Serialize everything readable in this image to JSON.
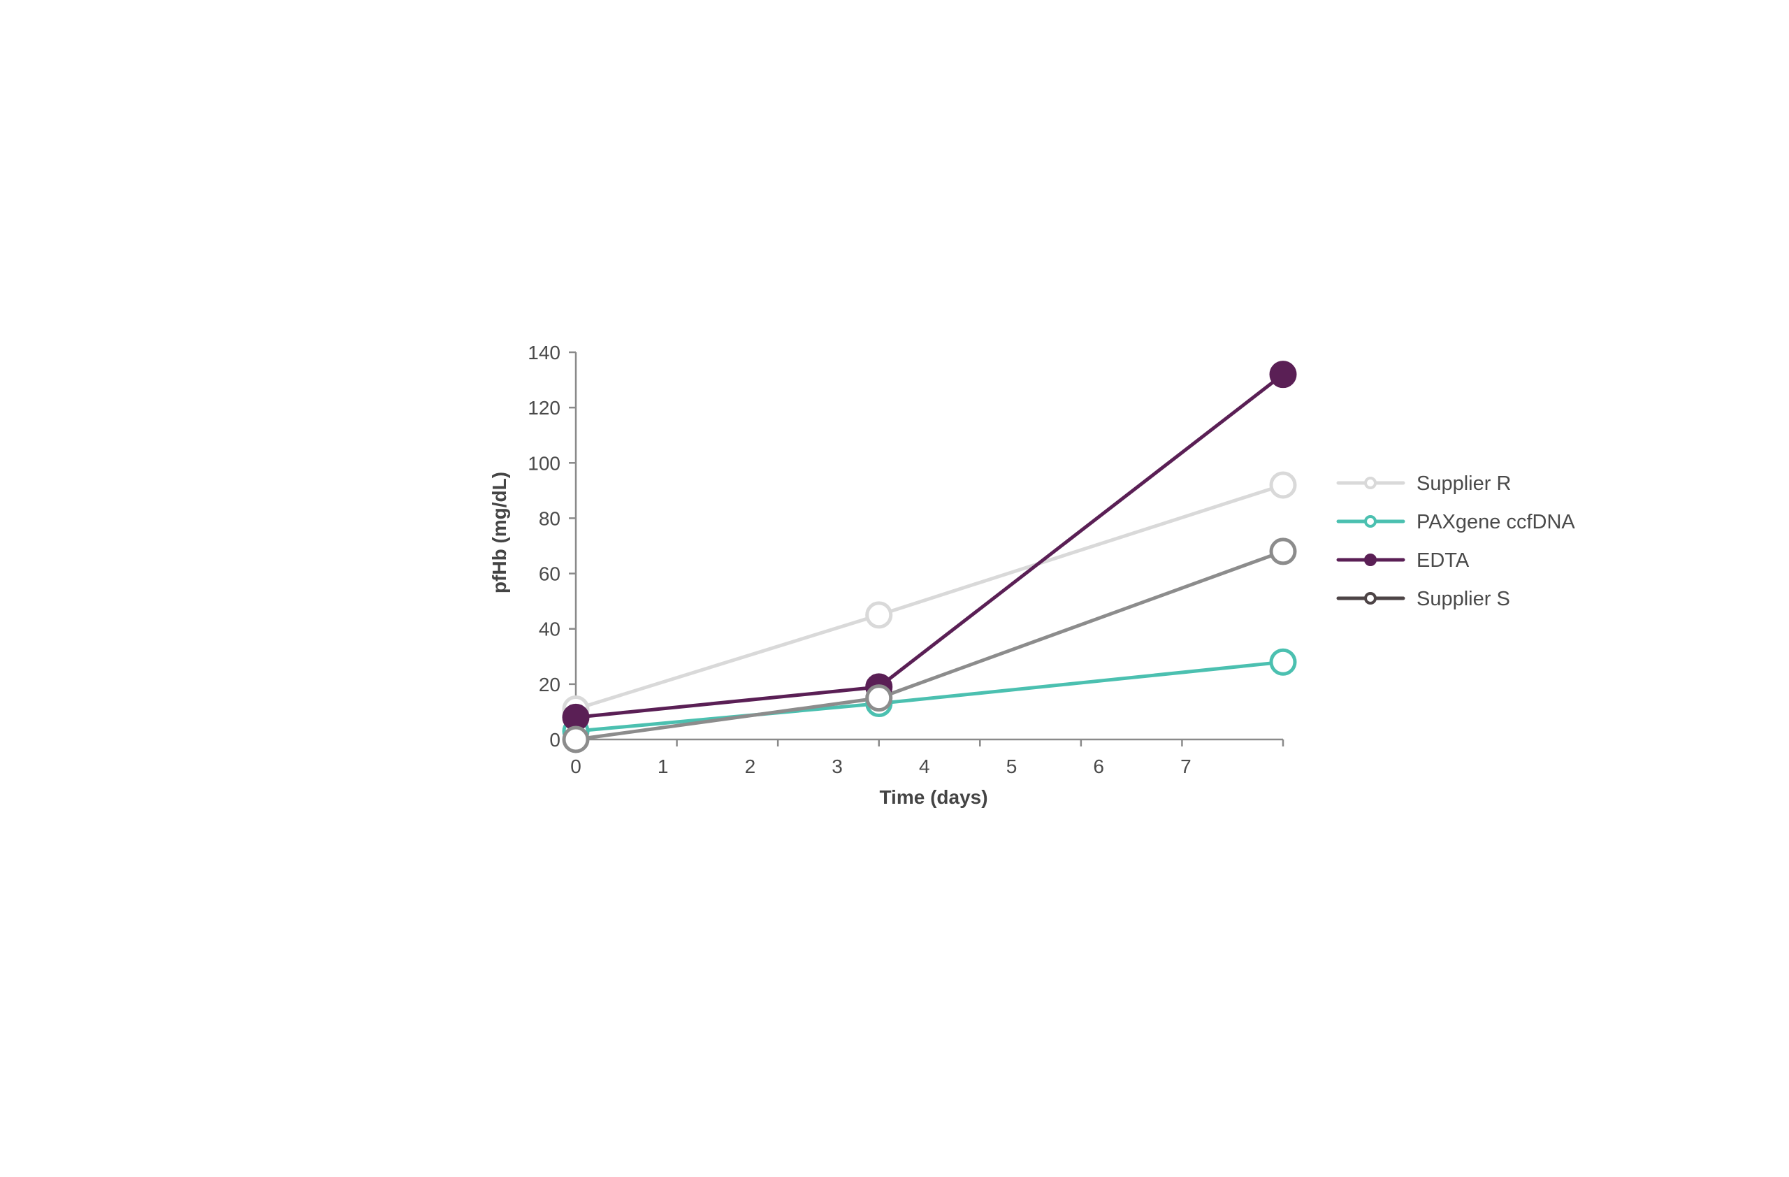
{
  "chart_data": {
    "type": "line",
    "title": "",
    "xlabel": "Time (days)",
    "ylabel": "pfHb (mg/dL)",
    "x_tick_labels": [
      "0",
      "1",
      "2",
      "3",
      "4",
      "5",
      "6",
      "7"
    ],
    "y_ticks": [
      0,
      20,
      40,
      60,
      80,
      100,
      120,
      140
    ],
    "ylim": [
      0,
      140
    ],
    "xlim": [
      0,
      7
    ],
    "grid": false,
    "legend_position": "right",
    "x": [
      0,
      3,
      7
    ],
    "series": [
      {
        "name": "Supplier R",
        "color": "#d9d9d9",
        "legend_color": "#d9d9d9",
        "marker": "open",
        "values": [
          11,
          45,
          92
        ]
      },
      {
        "name": "PAXgene ccfDNA",
        "color": "#4bc0b0",
        "legend_color": "#4bc0b0",
        "marker": "open",
        "values": [
          3,
          13,
          28
        ]
      },
      {
        "name": "EDTA",
        "color": "#5a1f55",
        "legend_color": "#5a1f55",
        "marker": "filled",
        "values": [
          8,
          19,
          132
        ]
      },
      {
        "name": "Supplier S",
        "color": "#8c8c8c",
        "legend_color": "#4d4446",
        "marker": "open",
        "values": [
          0,
          15,
          68
        ]
      }
    ]
  }
}
